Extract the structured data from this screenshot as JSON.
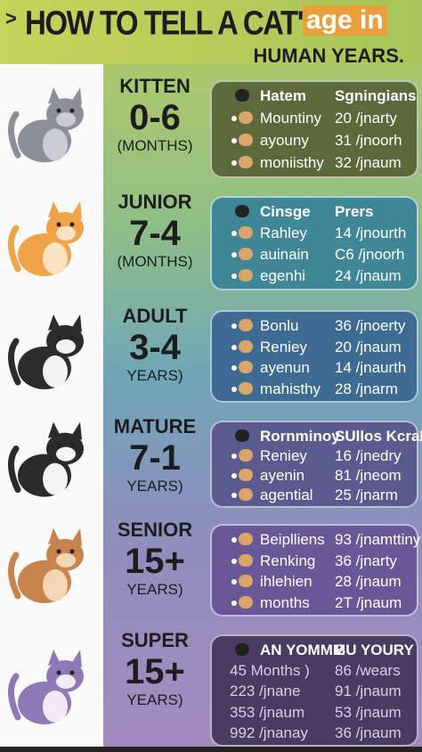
{
  "header": {
    "marker": ">",
    "title_main": "HOW TO TELL A CAT'S",
    "title_accent": "age in",
    "subtitle": "HUMAN YEARS."
  },
  "sections": [
    {
      "stage": "KITTEN",
      "range": "0-6",
      "unit": "(MONTHS)",
      "header": [
        "Hatem",
        "Sgningians"
      ],
      "rows": [
        [
          "Mountiny",
          "20 /jnarty"
        ],
        [
          "ayouny",
          "31 /jnoorh"
        ],
        [
          "moniisthy",
          "32 /jnaum"
        ]
      ]
    },
    {
      "stage": "JUNIOR",
      "range": "7-4",
      "unit": "(MONTHS)",
      "header": [
        "Cinsge",
        "Prers"
      ],
      "rows": [
        [
          "Rahley",
          "14 /jnourth"
        ],
        [
          "auinain",
          "C6 /jnoorh"
        ],
        [
          "egenhi",
          "24 /jnaum"
        ]
      ]
    },
    {
      "stage": "ADULT",
      "range": "3-4",
      "unit": "YEARS)",
      "header": null,
      "rows": [
        [
          "Bonlu",
          "36 /jnoerty"
        ],
        [
          "Reniey",
          "20 /jnaum"
        ],
        [
          "ayenun",
          "14 /jnaurth"
        ],
        [
          "mahisthy",
          "28 /jnarm"
        ]
      ]
    },
    {
      "stage": "MATURE",
      "range": "7-1",
      "unit": "YEARS)",
      "header": [
        "Rornminoy",
        "SUllos Kcrak"
      ],
      "rows": [
        [
          "Reniey",
          "16 /jnedry"
        ],
        [
          "ayenin",
          "81 /jneom"
        ],
        [
          "agential",
          "25 /jnarm"
        ]
      ]
    },
    {
      "stage": "SENIOR",
      "range": "15+",
      "unit": "YEARS)",
      "header": null,
      "rows": [
        [
          "Beiplliens",
          "93 /jnamttiny"
        ],
        [
          "Renking",
          "36 /jnarty"
        ],
        [
          "ihlehien",
          "28 /jnaum"
        ],
        [
          "months",
          "2T /jnaum"
        ]
      ]
    },
    {
      "stage": "SUPER",
      "range": "15+",
      "unit": "YEARS)",
      "header": [
        "AN YOMMM",
        "BU YOURY"
      ],
      "rows": [
        [
          "45 Months )",
          "86 /wears"
        ],
        [
          "223 /jnane",
          "91 /jnaum"
        ],
        [
          "353 /jnaum",
          "53 /jnaum"
        ],
        [
          "992 /jnanay",
          "36 /jnaum"
        ]
      ]
    }
  ]
}
